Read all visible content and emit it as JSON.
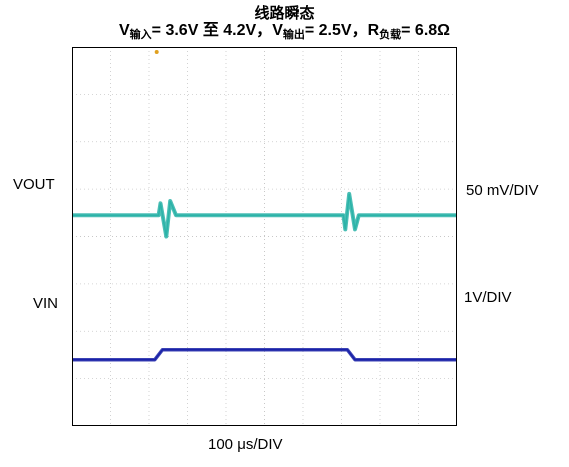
{
  "title": {
    "line1": "线路瞬态",
    "v_in_sym": "V",
    "v_in_sub": "输入",
    "v_in_val": "= 3.6V 至 4.2V，",
    "v_out_sym": "V",
    "v_out_sub": "输出",
    "v_out_val": "= 2.5V，",
    "r_sym": "R",
    "r_sub": "负载",
    "r_val": "= 6.8Ω"
  },
  "labels": {
    "vout_left": "VOUT",
    "vout_scale": "50 mV/DIV",
    "vin_left": "VIN",
    "vin_scale": "1V/DIV",
    "time_scale": "100 μs/DIV"
  },
  "colors": {
    "vout": "#2bb3a8",
    "vin": "#1a22a8",
    "grid": "#c8c8c8",
    "frame": "#000000",
    "marker": "#e0a020"
  },
  "chart_data": {
    "type": "line",
    "grid": true,
    "x_divisions": 10,
    "y_divisions": 8,
    "x_unit_per_div": "100 μs/DIV",
    "series": [
      {
        "name": "VOUT",
        "scale": "50 mV/DIV",
        "x": [
          0,
          2.25,
          2.3,
          2.45,
          2.55,
          2.7,
          7.05,
          7.1,
          7.2,
          7.35,
          7.45,
          10
        ],
        "y": [
          0,
          0,
          0.25,
          -0.45,
          0.3,
          0,
          0,
          -0.3,
          0.45,
          -0.3,
          0,
          0
        ]
      },
      {
        "name": "VIN",
        "scale": "1V/DIV",
        "x": [
          0,
          2.15,
          2.35,
          7.15,
          7.35,
          10
        ],
        "y": [
          3.6,
          3.6,
          4.2,
          4.2,
          3.6,
          3.6
        ]
      }
    ]
  }
}
